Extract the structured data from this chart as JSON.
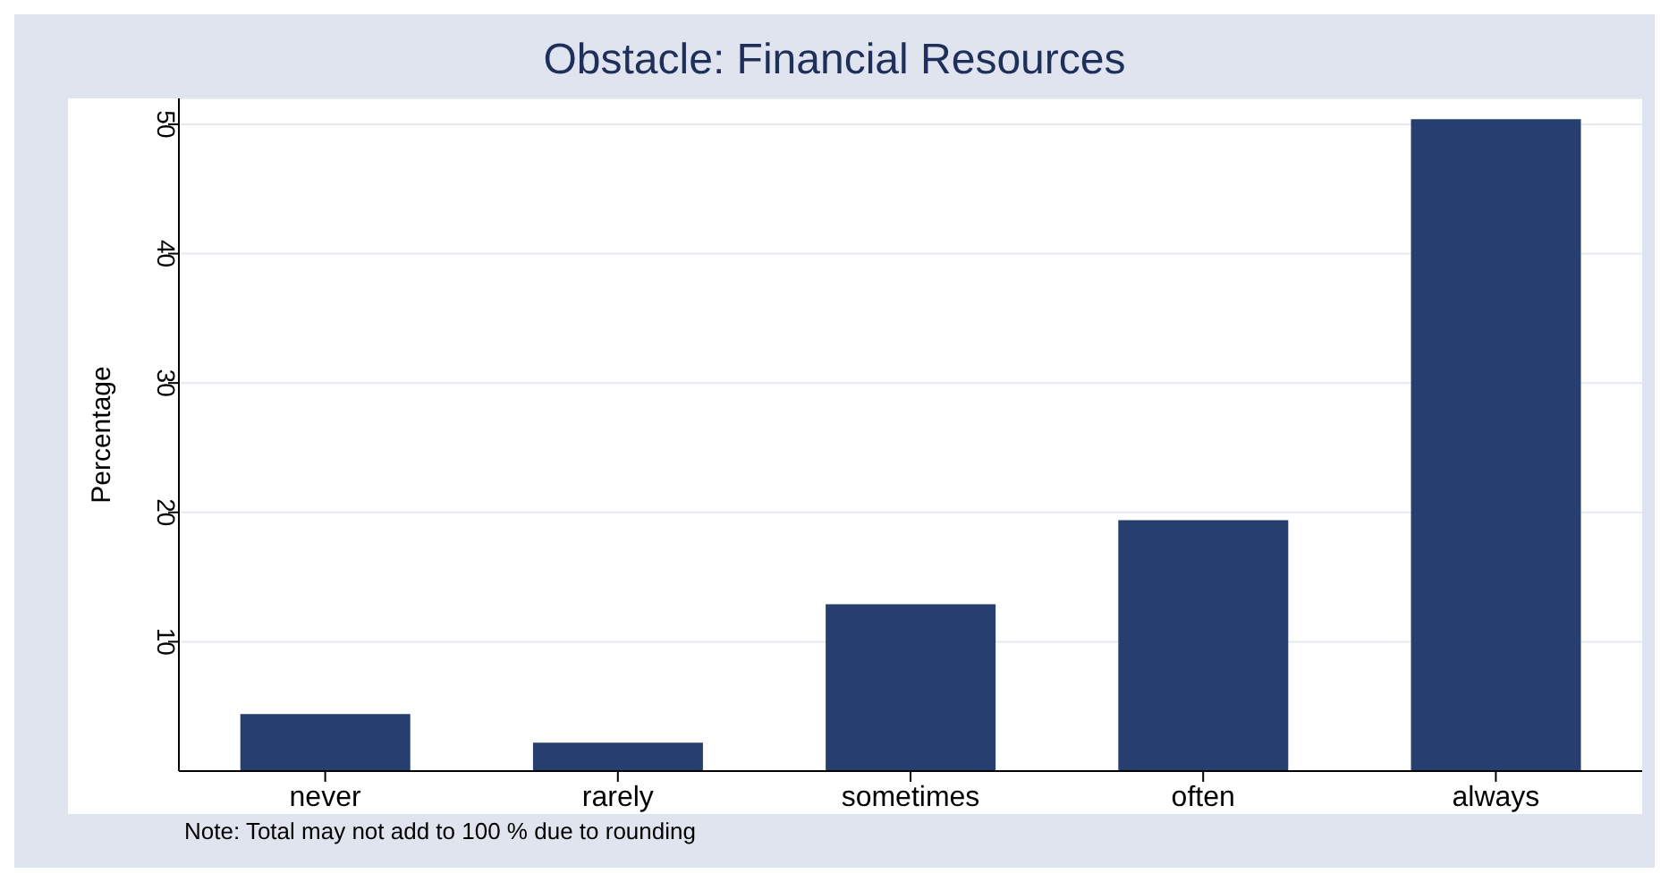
{
  "chart_data": {
    "type": "bar",
    "title": "Obstacle: Financial Resources",
    "ylabel": "Percentage",
    "categories": [
      "never",
      "rarely",
      "sometimes",
      "often",
      "always"
    ],
    "values": [
      4.4,
      2.2,
      12.9,
      19.4,
      50.4
    ],
    "color": "#263f6e",
    "ylim": [
      0,
      52
    ],
    "yticks": [
      10,
      20,
      30,
      40,
      50
    ],
    "grid": "y",
    "annotations": [
      "Note: Total may  not add to 100 % due to rounding"
    ]
  }
}
